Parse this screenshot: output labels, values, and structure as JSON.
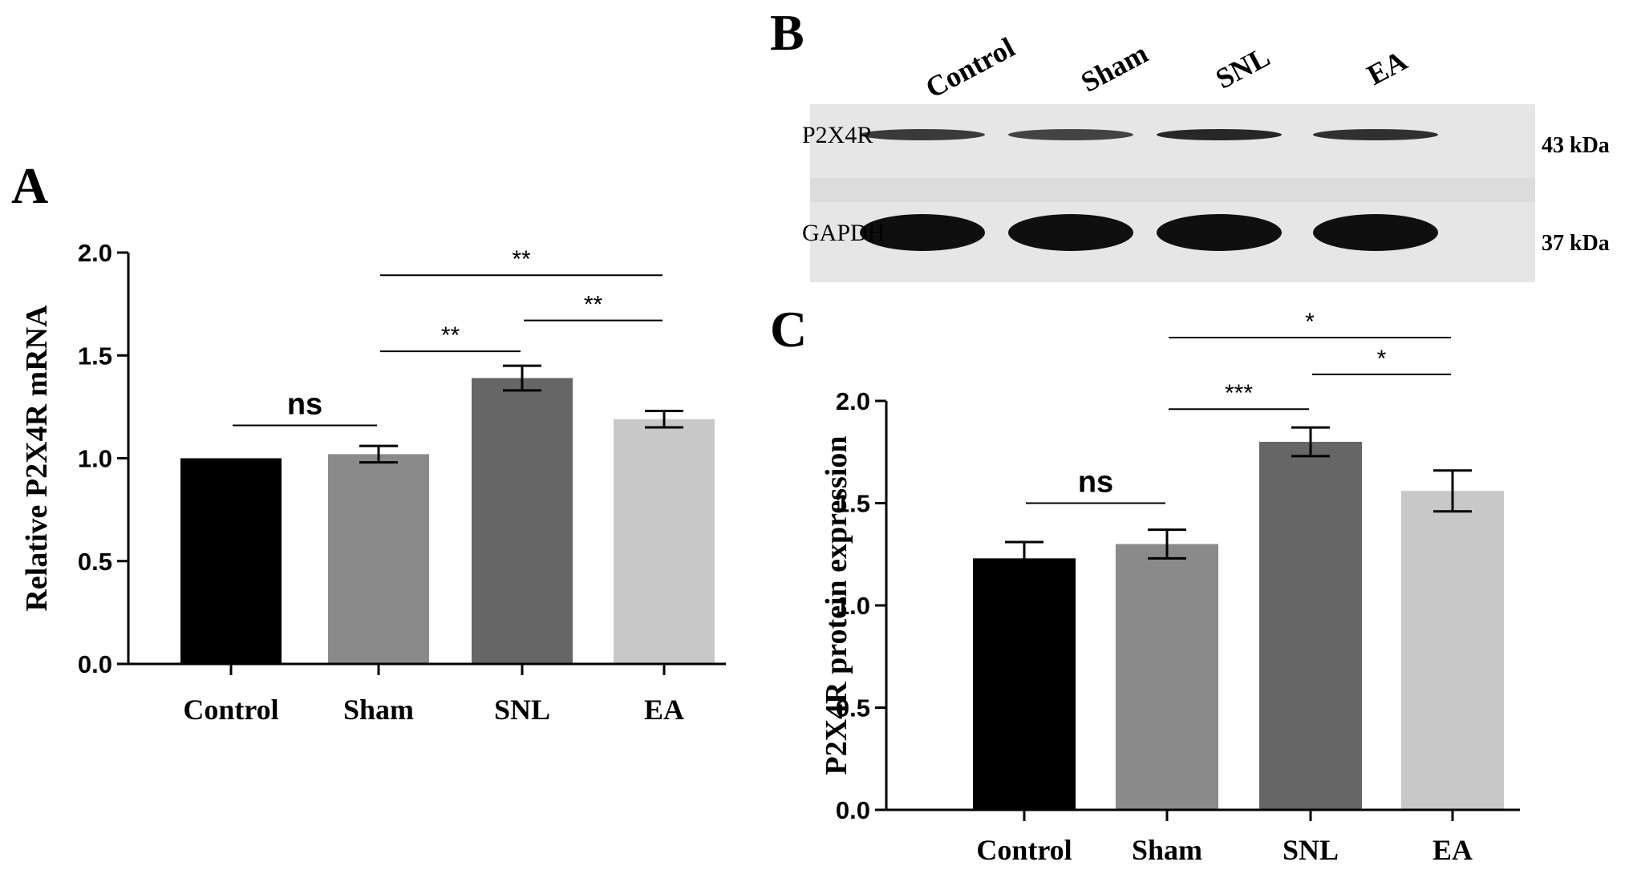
{
  "figure": {
    "panels": [
      "A",
      "B",
      "C"
    ]
  },
  "colors": {
    "control": "#000000",
    "sham": "#8a8a8a",
    "snl": "#666666",
    "ea": "#c8c8c8",
    "axis": "#000000"
  },
  "blot": {
    "lanes": [
      "Control",
      "Sham",
      "SNL",
      "EA"
    ],
    "rows": [
      {
        "label": "P2X4R",
        "kda": "43 kDa",
        "intensity": [
          0.55,
          0.45,
          0.75,
          0.65
        ]
      },
      {
        "label": "GAPDH",
        "kda": "37 kDa",
        "intensity": [
          1.0,
          1.0,
          1.0,
          1.0
        ]
      }
    ]
  },
  "chart_data": [
    {
      "panel": "A",
      "type": "bar",
      "categories": [
        "Control",
        "Sham",
        "SNL",
        "EA"
      ],
      "values": [
        1.0,
        1.02,
        1.39,
        1.19
      ],
      "errors": [
        0.0,
        0.04,
        0.06,
        0.04
      ],
      "title": "",
      "xlabel": "",
      "ylabel": "Relative P2X4R mRNA",
      "ylim": [
        0,
        2.0
      ],
      "yticks": [
        "0.0",
        "0.5",
        "1.0",
        "1.5",
        "2.0"
      ],
      "grid": false,
      "significance": [
        {
          "from": "Control",
          "to": "Sham",
          "label": "ns",
          "y": 1.16
        },
        {
          "from": "Sham",
          "to": "SNL",
          "label": "**",
          "y": 1.52
        },
        {
          "from": "SNL",
          "to": "EA",
          "label": "**",
          "y": 1.67
        },
        {
          "from": "Sham",
          "to": "EA",
          "label": "**",
          "y": 1.89
        }
      ]
    },
    {
      "panel": "C",
      "type": "bar",
      "categories": [
        "Control",
        "Sham",
        "SNL",
        "EA"
      ],
      "values": [
        1.23,
        1.3,
        1.8,
        1.56
      ],
      "errors": [
        0.08,
        0.07,
        0.07,
        0.1
      ],
      "title": "",
      "xlabel": "",
      "ylabel": "P2X4R protein expression",
      "ylim": [
        0,
        2.0
      ],
      "yticks": [
        "0.0",
        "0.5",
        "1.0",
        "1.5",
        "2.0"
      ],
      "grid": false,
      "significance": [
        {
          "from": "Control",
          "to": "Sham",
          "label": "ns",
          "y": 1.5
        },
        {
          "from": "Sham",
          "to": "SNL",
          "label": "***",
          "y": 1.96
        },
        {
          "from": "SNL",
          "to": "EA",
          "label": "*",
          "y": 2.13
        },
        {
          "from": "Sham",
          "to": "EA",
          "label": "*",
          "y": 2.31
        }
      ]
    }
  ]
}
